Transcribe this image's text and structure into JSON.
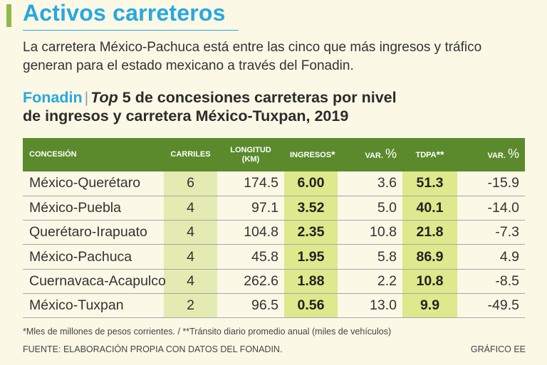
{
  "header": {
    "title": "Activos carreteros",
    "lede": "La carretera México-Pachuca está entre las cinco que más ingresos y tráfico generan para el estado mexicano a través del Fonadin."
  },
  "chart_data": {
    "type": "table",
    "source_label": "Fonadin",
    "separator": "|",
    "title_italic": "Top",
    "title_line1": " 5 de concesiones carreteras por nivel",
    "title_line2": "de ingresos y carretera México-Tuxpan, 2019",
    "columns": [
      "CONCESIÓN",
      "CARRILES",
      "LONGITUD (KM)",
      "INGRESOS*",
      "VAR. %",
      "TDPA**",
      "VAR. %"
    ],
    "columns_display": {
      "longitud_line1": "LONGITUD",
      "longitud_line2": "(KM)",
      "ingresos": "INGRESOS",
      "ingresos_mark": "*",
      "var": "VAR.",
      "pct": "%",
      "tdpa": "TDPA",
      "tdpa_mark": "**"
    },
    "rows": [
      {
        "concesion": "México-Querétaro",
        "carriles": "6",
        "longitud": "174.5",
        "ingresos": "6.00",
        "var_ingresos": "3.6",
        "tdpa": "51.3",
        "var_tdpa": "-15.9"
      },
      {
        "concesion": "México-Puebla",
        "carriles": "4",
        "longitud": "97.1",
        "ingresos": "3.52",
        "var_ingresos": "5.0",
        "tdpa": "40.1",
        "var_tdpa": "-14.0"
      },
      {
        "concesion": "Querétaro-Irapuato",
        "carriles": "4",
        "longitud": "104.8",
        "ingresos": "2.35",
        "var_ingresos": "10.8",
        "tdpa": "21.8",
        "var_tdpa": "-7.3"
      },
      {
        "concesion": "México-Pachuca",
        "carriles": "4",
        "longitud": "45.8",
        "ingresos": "1.95",
        "var_ingresos": "5.8",
        "tdpa": "86.9",
        "var_tdpa": "4.9"
      },
      {
        "concesion": "Cuernavaca-Acapulco",
        "carriles": "4",
        "longitud": "262.6",
        "ingresos": "1.88",
        "var_ingresos": "2.2",
        "tdpa": "10.8",
        "var_tdpa": "-8.5"
      },
      {
        "concesion": "México-Tuxpan",
        "carriles": "2",
        "longitud": "96.5",
        "ingresos": "0.56",
        "var_ingresos": "13.0",
        "tdpa": "9.9",
        "var_tdpa": "-49.5"
      }
    ],
    "footnote": "*Mles de millones de pesos corrientes. / **Tránsito diario promedio anual (miles de vehículos)"
  },
  "footer": {
    "source": "FUENTE: ELABORACIÓN PROPIA CON DATOS DEL FONADIN.",
    "credit": "GRÁFICO EE"
  },
  "colors": {
    "title_blue": "#27a8e0",
    "header_green": "#5a8a2c",
    "highlight_light": "#e3ebb2",
    "highlight_strong": "#dde98c"
  }
}
